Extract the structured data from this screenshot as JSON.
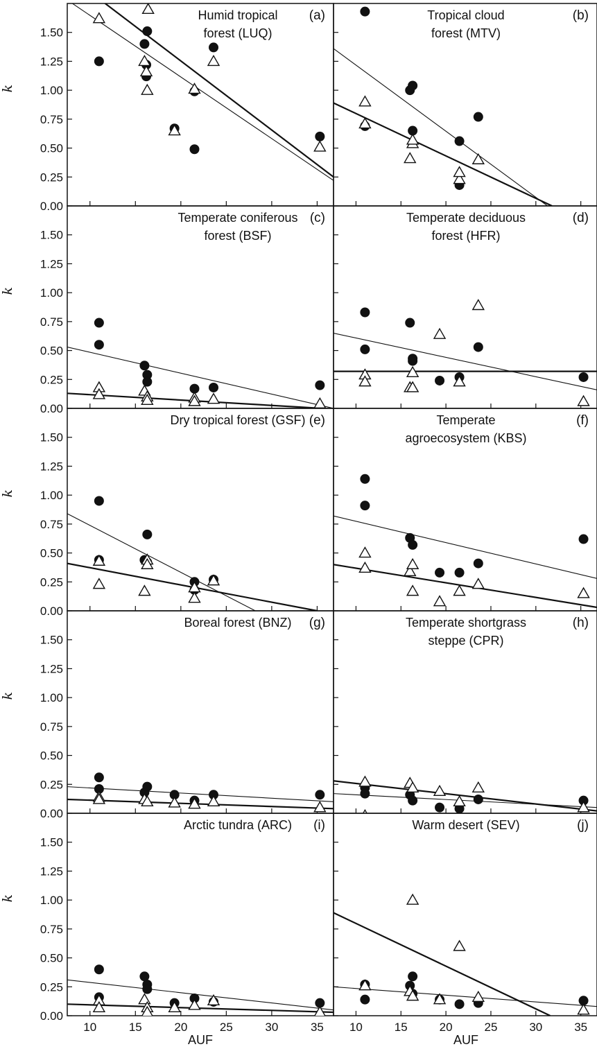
{
  "figure": {
    "xlabel": "AUF",
    "ylabel": "k"
  },
  "chart_data": [
    {
      "type": "scatter",
      "id": "a",
      "title_lines": [
        "Humid tropical",
        "forest (LUQ)"
      ],
      "letter": "(a)",
      "xlim": [
        7.5,
        36.8
      ],
      "ylim": [
        0,
        1.75
      ],
      "xticks": [
        10,
        15,
        20,
        25,
        30,
        35
      ],
      "xtick_labels": [],
      "yticks": [
        0,
        0.25,
        0.5,
        0.75,
        1.0,
        1.25,
        1.5
      ],
      "ytick_labels": [
        "0.00",
        "0.25",
        "0.50",
        "0.75",
        "1.00",
        "1.25",
        "1.50"
      ],
      "series": [
        {
          "marker": "filled-circle",
          "x": [
            11.0,
            16.0,
            16.2,
            16.2,
            16.3,
            19.3,
            21.5,
            21.5,
            23.6,
            35.3
          ],
          "y": [
            1.25,
            1.4,
            1.12,
            1.22,
            1.51,
            0.67,
            0.99,
            0.49,
            1.37,
            0.6
          ]
        },
        {
          "marker": "open-triangle",
          "x": [
            11.0,
            16.0,
            16.3,
            16.4,
            16.2,
            19.3,
            21.5,
            23.6,
            35.3
          ],
          "y": [
            1.62,
            1.25,
            1.0,
            1.7,
            1.16,
            0.65,
            1.01,
            1.25,
            0.51
          ]
        }
      ],
      "fits": [
        {
          "style": "thick",
          "x": [
            10.5,
            36.8
          ],
          "y": [
            1.82,
            0.25
          ]
        },
        {
          "style": "thin",
          "x": [
            7.5,
            36.8
          ],
          "y": [
            1.78,
            0.22
          ]
        }
      ]
    },
    {
      "type": "scatter",
      "id": "b",
      "title_lines": [
        "Tropical cloud",
        "forest (MTV)"
      ],
      "letter": "(b)",
      "xlim": [
        7.5,
        36.8
      ],
      "ylim": [
        0,
        1.75
      ],
      "xticks": [
        10,
        15,
        20,
        25,
        30,
        35
      ],
      "xtick_labels": [],
      "yticks": [
        0,
        0.25,
        0.5,
        0.75,
        1.0,
        1.25,
        1.5
      ],
      "ytick_labels": [],
      "series": [
        {
          "marker": "filled-circle",
          "x": [
            11.0,
            11.0,
            16.0,
            16.3,
            16.3,
            21.5,
            21.5,
            23.6
          ],
          "y": [
            1.68,
            0.69,
            1.0,
            1.04,
            0.65,
            0.56,
            0.18,
            0.77
          ]
        },
        {
          "marker": "open-triangle",
          "x": [
            11.0,
            11.0,
            16.0,
            16.3,
            16.3,
            21.5,
            21.5,
            23.6
          ],
          "y": [
            0.9,
            0.71,
            0.41,
            0.54,
            0.57,
            0.23,
            0.29,
            0.4
          ]
        }
      ],
      "fits": [
        {
          "style": "thick",
          "x": [
            7.5,
            31.8
          ],
          "y": [
            0.89,
            0.0
          ]
        },
        {
          "style": "thin",
          "x": [
            7.5,
            31.3
          ],
          "y": [
            1.36,
            0.0
          ]
        }
      ]
    },
    {
      "type": "scatter",
      "id": "c",
      "title_lines": [
        "Temperate coniferous",
        "forest (BSF)"
      ],
      "letter": "(c)",
      "xlim": [
        7.5,
        36.8
      ],
      "ylim": [
        0,
        1.75
      ],
      "xticks": [
        10,
        15,
        20,
        25,
        30,
        35
      ],
      "xtick_labels": [],
      "yticks": [
        0,
        0.25,
        0.5,
        0.75,
        1.0,
        1.25,
        1.5
      ],
      "ytick_labels": [
        "0.00",
        "0.25",
        "0.50",
        "0.75",
        "1.00",
        "1.25",
        "1.50"
      ],
      "series": [
        {
          "marker": "filled-circle",
          "x": [
            11.0,
            11.0,
            16.0,
            16.3,
            16.3,
            21.5,
            23.6,
            35.3
          ],
          "y": [
            0.74,
            0.55,
            0.37,
            0.29,
            0.23,
            0.17,
            0.18,
            0.2
          ]
        },
        {
          "marker": "open-triangle",
          "x": [
            11.0,
            11.0,
            16.0,
            16.3,
            16.3,
            21.5,
            21.5,
            23.6,
            35.3
          ],
          "y": [
            0.18,
            0.12,
            0.15,
            0.1,
            0.07,
            0.09,
            0.06,
            0.08,
            0.04
          ]
        }
      ],
      "fits": [
        {
          "style": "thin",
          "x": [
            7.5,
            36.8
          ],
          "y": [
            0.53,
            0.0
          ]
        },
        {
          "style": "thick",
          "x": [
            7.5,
            35.5
          ],
          "y": [
            0.13,
            0.0
          ]
        }
      ]
    },
    {
      "type": "scatter",
      "id": "d",
      "title_lines": [
        "Temperate deciduous",
        "forest (HFR)"
      ],
      "letter": "(d)",
      "xlim": [
        7.5,
        36.8
      ],
      "ylim": [
        0,
        1.75
      ],
      "xticks": [
        10,
        15,
        20,
        25,
        30,
        35
      ],
      "xtick_labels": [],
      "yticks": [
        0,
        0.25,
        0.5,
        0.75,
        1.0,
        1.25,
        1.5
      ],
      "ytick_labels": [],
      "series": [
        {
          "marker": "filled-circle",
          "x": [
            11.0,
            11.0,
            16.0,
            16.3,
            16.3,
            19.3,
            21.5,
            23.6,
            35.3
          ],
          "y": [
            0.83,
            0.51,
            0.74,
            0.43,
            0.41,
            0.24,
            0.27,
            0.53,
            0.27
          ]
        },
        {
          "marker": "open-triangle",
          "x": [
            11.0,
            11.0,
            16.0,
            16.3,
            16.3,
            19.3,
            21.5,
            23.6,
            35.3
          ],
          "y": [
            0.29,
            0.23,
            0.18,
            0.18,
            0.31,
            0.64,
            0.23,
            0.89,
            0.06
          ]
        }
      ],
      "fits": [
        {
          "style": "thin",
          "x": [
            7.5,
            36.8
          ],
          "y": [
            0.65,
            0.16
          ]
        },
        {
          "style": "thick",
          "x": [
            7.5,
            36.8
          ],
          "y": [
            0.32,
            0.32
          ]
        }
      ]
    },
    {
      "type": "scatter",
      "id": "e",
      "title_lines": [
        "Dry tropical forest (GSF)"
      ],
      "letter": "(e)",
      "xlim": [
        7.5,
        36.8
      ],
      "ylim": [
        0,
        1.75
      ],
      "xticks": [
        10,
        15,
        20,
        25,
        30,
        35
      ],
      "xtick_labels": [],
      "yticks": [
        0,
        0.25,
        0.5,
        0.75,
        1.0,
        1.25,
        1.5
      ],
      "ytick_labels": [
        "0.00",
        "0.25",
        "0.50",
        "0.75",
        "1.00",
        "1.25",
        "1.50"
      ],
      "series": [
        {
          "marker": "filled-circle",
          "x": [
            11.0,
            11.0,
            16.0,
            16.3,
            16.3,
            21.5,
            21.5,
            23.6
          ],
          "y": [
            0.95,
            0.44,
            0.44,
            0.66,
            0.42,
            0.25,
            0.18,
            0.27
          ]
        },
        {
          "marker": "open-triangle",
          "x": [
            11.0,
            11.0,
            16.0,
            16.3,
            16.3,
            21.5,
            21.5,
            23.6
          ],
          "y": [
            0.43,
            0.23,
            0.17,
            0.44,
            0.4,
            0.11,
            0.2,
            0.26
          ]
        }
      ],
      "fits": [
        {
          "style": "thin",
          "x": [
            7.5,
            28.2
          ],
          "y": [
            0.84,
            0.0
          ]
        },
        {
          "style": "thick",
          "x": [
            7.5,
            35.0
          ],
          "y": [
            0.41,
            0.0
          ]
        }
      ]
    },
    {
      "type": "scatter",
      "id": "f",
      "title_lines": [
        "Temperate",
        "agroecosystem (KBS)"
      ],
      "letter": "(f)",
      "xlim": [
        7.5,
        36.8
      ],
      "ylim": [
        0,
        1.75
      ],
      "xticks": [
        10,
        15,
        20,
        25,
        30,
        35
      ],
      "xtick_labels": [],
      "yticks": [
        0,
        0.25,
        0.5,
        0.75,
        1.0,
        1.25,
        1.5
      ],
      "ytick_labels": [],
      "series": [
        {
          "marker": "filled-circle",
          "x": [
            11.0,
            11.0,
            16.0,
            16.3,
            19.3,
            21.5,
            23.6,
            35.3
          ],
          "y": [
            1.14,
            0.91,
            0.63,
            0.57,
            0.33,
            0.33,
            0.41,
            0.62
          ]
        },
        {
          "marker": "open-triangle",
          "x": [
            11.0,
            11.0,
            16.0,
            16.3,
            16.3,
            19.3,
            21.5,
            23.6,
            35.3
          ],
          "y": [
            0.5,
            0.37,
            0.34,
            0.4,
            0.17,
            0.08,
            0.17,
            0.23,
            0.15
          ]
        }
      ],
      "fits": [
        {
          "style": "thin",
          "x": [
            7.5,
            36.8
          ],
          "y": [
            0.82,
            0.28
          ]
        },
        {
          "style": "thick",
          "x": [
            7.5,
            36.8
          ],
          "y": [
            0.4,
            0.03
          ]
        }
      ]
    },
    {
      "type": "scatter",
      "id": "g",
      "title_lines": [
        "Boreal forest (BNZ)"
      ],
      "letter": "(g)",
      "xlim": [
        7.5,
        36.8
      ],
      "ylim": [
        0,
        1.75
      ],
      "xticks": [
        10,
        15,
        20,
        25,
        30,
        35
      ],
      "xtick_labels": [],
      "yticks": [
        0,
        0.25,
        0.5,
        0.75,
        1.0,
        1.25,
        1.5
      ],
      "ytick_labels": [
        "0.00",
        "0.25",
        "0.50",
        "0.75",
        "1.00",
        "1.25",
        "1.50"
      ],
      "series": [
        {
          "marker": "filled-circle",
          "x": [
            11.0,
            11.0,
            16.0,
            16.3,
            19.3,
            21.5,
            23.6,
            35.3
          ],
          "y": [
            0.31,
            0.21,
            0.18,
            0.23,
            0.16,
            0.11,
            0.16,
            0.16
          ]
        },
        {
          "marker": "open-triangle",
          "x": [
            11.0,
            11.0,
            16.0,
            16.3,
            19.3,
            21.5,
            23.6,
            35.3
          ],
          "y": [
            0.14,
            0.12,
            0.12,
            0.1,
            0.09,
            0.08,
            0.1,
            0.05
          ]
        }
      ],
      "fits": [
        {
          "style": "thin",
          "x": [
            7.5,
            36.8
          ],
          "y": [
            0.23,
            0.1
          ]
        },
        {
          "style": "thick",
          "x": [
            7.5,
            36.8
          ],
          "y": [
            0.12,
            0.04
          ]
        }
      ]
    },
    {
      "type": "scatter",
      "id": "h",
      "title_lines": [
        "Temperate shortgrass",
        "steppe (CPR)"
      ],
      "letter": "(h)",
      "xlim": [
        7.5,
        36.8
      ],
      "ylim": [
        0,
        1.75
      ],
      "xticks": [
        10,
        15,
        20,
        25,
        30,
        35
      ],
      "xtick_labels": [],
      "yticks": [
        0,
        0.25,
        0.5,
        0.75,
        1.0,
        1.25,
        1.5
      ],
      "ytick_labels": [],
      "series": [
        {
          "marker": "filled-circle",
          "x": [
            11.0,
            11.0,
            16.0,
            16.3,
            19.3,
            21.5,
            23.6,
            35.3
          ],
          "y": [
            0.22,
            0.17,
            0.16,
            0.11,
            0.05,
            0.04,
            0.12,
            0.11
          ]
        },
        {
          "marker": "open-triangle",
          "x": [
            11.0,
            11.0,
            16.0,
            16.3,
            19.3,
            21.5,
            23.6,
            35.3
          ],
          "y": [
            0.27,
            -0.02,
            0.26,
            0.22,
            0.19,
            0.1,
            0.22,
            0.05
          ]
        }
      ],
      "fits": [
        {
          "style": "thick",
          "x": [
            7.5,
            36.8
          ],
          "y": [
            0.28,
            0.02
          ]
        },
        {
          "style": "thin",
          "x": [
            7.5,
            36.8
          ],
          "y": [
            0.17,
            0.05
          ]
        }
      ]
    },
    {
      "type": "scatter",
      "id": "i",
      "title_lines": [
        "Arctic tundra (ARC)"
      ],
      "letter": "(i)",
      "xlim": [
        7.5,
        36.8
      ],
      "ylim": [
        0,
        1.75
      ],
      "xticks": [
        10,
        15,
        20,
        25,
        30,
        35
      ],
      "xtick_labels": [
        "10",
        "15",
        "20",
        "25",
        "30",
        "35"
      ],
      "yticks": [
        0,
        0.25,
        0.5,
        0.75,
        1.0,
        1.25,
        1.5
      ],
      "ytick_labels": [
        "0.00",
        "0.25",
        "0.50",
        "0.75",
        "1.00",
        "1.25",
        "1.50"
      ],
      "series": [
        {
          "marker": "filled-circle",
          "x": [
            11.0,
            11.0,
            16.0,
            16.3,
            16.3,
            19.3,
            21.5,
            23.6,
            35.3
          ],
          "y": [
            0.4,
            0.16,
            0.34,
            0.27,
            0.23,
            0.11,
            0.15,
            0.12,
            0.11
          ]
        },
        {
          "marker": "open-triangle",
          "x": [
            11.0,
            11.0,
            16.0,
            16.3,
            16.3,
            19.3,
            21.5,
            23.6,
            35.3
          ],
          "y": [
            0.13,
            0.07,
            0.14,
            0.07,
            0.03,
            0.07,
            0.09,
            0.13,
            0.03
          ]
        }
      ],
      "fits": [
        {
          "style": "thin",
          "x": [
            7.5,
            36.8
          ],
          "y": [
            0.31,
            0.05
          ]
        },
        {
          "style": "thick",
          "x": [
            7.5,
            36.8
          ],
          "y": [
            0.1,
            0.03
          ]
        }
      ]
    },
    {
      "type": "scatter",
      "id": "j",
      "title_lines": [
        "Warm desert (SEV)"
      ],
      "letter": "(j)",
      "xlim": [
        7.5,
        36.8
      ],
      "ylim": [
        0,
        1.75
      ],
      "xticks": [
        10,
        15,
        20,
        25,
        30,
        35
      ],
      "xtick_labels": [
        "10",
        "15",
        "20",
        "25",
        "30",
        "35"
      ],
      "yticks": [
        0,
        0.25,
        0.5,
        0.75,
        1.0,
        1.25,
        1.5
      ],
      "ytick_labels": [],
      "series": [
        {
          "marker": "filled-circle",
          "x": [
            11.0,
            11.0,
            16.0,
            16.3,
            16.3,
            19.3,
            21.5,
            23.6,
            35.3
          ],
          "y": [
            0.27,
            0.14,
            0.26,
            0.34,
            0.19,
            0.14,
            0.1,
            0.11,
            0.13
          ]
        },
        {
          "marker": "open-triangle",
          "x": [
            11.0,
            16.0,
            16.3,
            16.3,
            19.3,
            21.5,
            23.6,
            35.3
          ],
          "y": [
            0.26,
            0.21,
            1.0,
            0.17,
            0.14,
            0.6,
            0.16,
            0.05
          ]
        }
      ],
      "fits": [
        {
          "style": "thick",
          "x": [
            7.5,
            31.6
          ],
          "y": [
            0.89,
            0.0
          ]
        },
        {
          "style": "thin",
          "x": [
            7.5,
            36.8
          ],
          "y": [
            0.25,
            0.08
          ]
        }
      ]
    }
  ]
}
